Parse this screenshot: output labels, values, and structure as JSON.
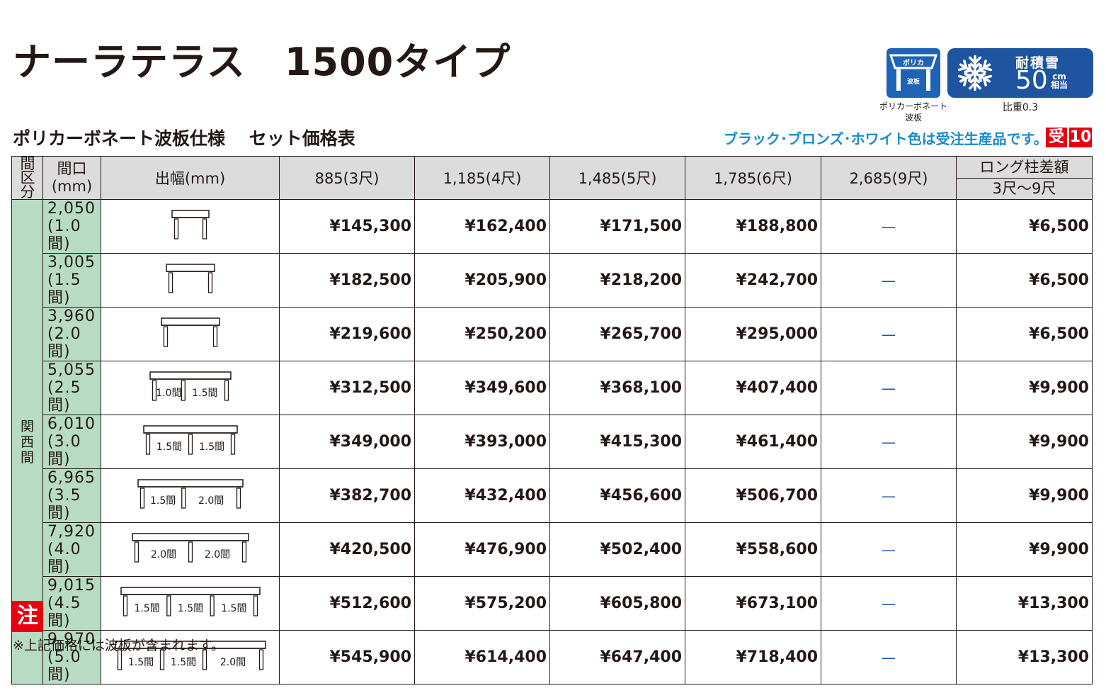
{
  "header": {
    "title": "ナーラテラス　1500タイプ",
    "subtitle": "ポリカーボネート波板仕様　 セット価格表",
    "notice": "ブラック･ブロンズ･ホワイト色は受注生産品です。",
    "order_tag": "受",
    "order_days": "10"
  },
  "badges": {
    "polycarbonate": {
      "roof_label": "ポリカ",
      "panel_label": "波板",
      "caption_line1": "ポリカーボネート",
      "caption_line2": "波板"
    },
    "snow": {
      "label": "耐積雪",
      "value": "50",
      "unit_top": "cm",
      "unit_bottom": "相当",
      "caption": "比重0.3"
    }
  },
  "table": {
    "headers": {
      "region": "間区分",
      "width_line1": "間口",
      "width_line2": "(mm)",
      "depth": "出幅(mm)",
      "columns": [
        "885(3尺)",
        "1,185(4尺)",
        "1,485(5尺)",
        "1,785(6尺)",
        "2,685(9尺)"
      ],
      "long_post_line1": "ロング柱差額",
      "long_post_line2": "3尺～9尺"
    },
    "region_label": "関西間",
    "rows": [
      {
        "width": "2,050",
        "ken": "(1.0間)",
        "spans": [],
        "prices": [
          "¥145,300",
          "¥162,400",
          "¥171,500",
          "¥188,800",
          "—"
        ],
        "long_post": "¥6,500"
      },
      {
        "width": "3,005",
        "ken": "(1.5間)",
        "spans": [],
        "prices": [
          "¥182,500",
          "¥205,900",
          "¥218,200",
          "¥242,700",
          "—"
        ],
        "long_post": "¥6,500"
      },
      {
        "width": "3,960",
        "ken": "(2.0間)",
        "spans": [],
        "prices": [
          "¥219,600",
          "¥250,200",
          "¥265,700",
          "¥295,000",
          "—"
        ],
        "long_post": "¥6,500"
      },
      {
        "width": "5,055",
        "ken": "(2.5間)",
        "spans": [
          "1.0間",
          "1.5間"
        ],
        "prices": [
          "¥312,500",
          "¥349,600",
          "¥368,100",
          "¥407,400",
          "—"
        ],
        "long_post": "¥9,900"
      },
      {
        "width": "6,010",
        "ken": "(3.0間)",
        "spans": [
          "1.5間",
          "1.5間"
        ],
        "prices": [
          "¥349,000",
          "¥393,000",
          "¥415,300",
          "¥461,400",
          "—"
        ],
        "long_post": "¥9,900"
      },
      {
        "width": "6,965",
        "ken": "(3.5間)",
        "spans": [
          "1.5間",
          "2.0間"
        ],
        "prices": [
          "¥382,700",
          "¥432,400",
          "¥456,600",
          "¥506,700",
          "—"
        ],
        "long_post": "¥9,900"
      },
      {
        "width": "7,920",
        "ken": "(4.0間)",
        "spans": [
          "2.0間",
          "2.0間"
        ],
        "prices": [
          "¥420,500",
          "¥476,900",
          "¥502,400",
          "¥558,600",
          "—"
        ],
        "long_post": "¥9,900"
      },
      {
        "width": "9,015",
        "ken": "(4.5間)",
        "spans": [
          "1.5間",
          "1.5間",
          "1.5間"
        ],
        "prices": [
          "¥512,600",
          "¥575,200",
          "¥605,800",
          "¥673,100",
          "—"
        ],
        "long_post": "¥13,300"
      },
      {
        "width": "9,970",
        "ken": "(5.0間)",
        "spans": [
          "1.5間",
          "1.5間",
          "2.0間"
        ],
        "prices": [
          "¥545,900",
          "¥614,400",
          "¥647,400",
          "¥718,400",
          "—"
        ],
        "long_post": "¥13,300"
      }
    ]
  },
  "footer": {
    "note_tag": "注",
    "note": "※上記価格には波板が含まれます。"
  },
  "colors": {
    "header_gray": "#dcdcdd",
    "region_green": "#b7dcc3",
    "badge_blue": "#1e54a0",
    "notice_blue": "#1a8ccc",
    "accent_red": "#e60012"
  }
}
